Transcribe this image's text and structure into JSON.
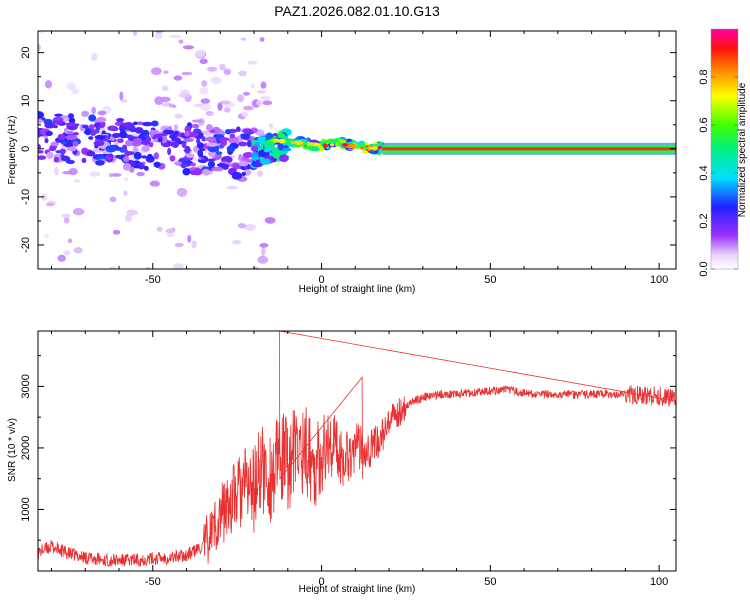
{
  "chart_data": [
    {
      "type": "heatmap",
      "title": "PAZ1.2026.082.01.10.G13",
      "xlabel": "Height of straight line (km)",
      "ylabel": "Frequency (Hz)",
      "xlim": [
        -84,
        105
      ],
      "ylim": [
        -25,
        24.5
      ],
      "xticks": [
        -50,
        0,
        50,
        100
      ],
      "yticks": [
        -20,
        -10,
        0,
        10,
        20
      ],
      "colorbar": {
        "label": "Normalized spectral amplitude",
        "range": [
          0,
          1
        ],
        "ticks": [
          "0.0",
          "0.2",
          "0.4",
          "0.6",
          "0.8"
        ],
        "tick_values": [
          0.0,
          0.2,
          0.4,
          0.6,
          0.8
        ],
        "colormap": "rainbow (white-violet-blue-cyan-green-yellow-orange-red-magenta)"
      },
      "tone_line": {
        "frequency": 0.0,
        "from_height": 18,
        "to_height": 105,
        "amplitude": 0.9
      },
      "features": [
        {
          "height_range": [
            -84,
            -20
          ],
          "frequency_range": [
            -6,
            8
          ],
          "amplitude": 0.25
        },
        {
          "height_range": [
            -20,
            -10
          ],
          "frequency_range": [
            -4,
            4
          ],
          "amplitude": 0.45
        },
        {
          "height_range": [
            -10,
            18
          ],
          "frequency_range": [
            -1,
            3
          ],
          "amplitude": 0.6
        }
      ]
    },
    {
      "type": "line",
      "xlabel": "Height of straight line (km)",
      "ylabel": "SNR (10 * v/v)",
      "xlim": [
        -84,
        105
      ],
      "ylim": [
        0,
        3900
      ],
      "xticks": [
        -50,
        0,
        50,
        100
      ],
      "yticks": [
        1000,
        2000,
        3000
      ],
      "line_color": "#e83030",
      "series": [
        {
          "name": "SNR",
          "x": [
            -84,
            -80,
            -75,
            -70,
            -65,
            -60,
            -55,
            -50,
            -45,
            -40,
            -35,
            -32,
            -30,
            -28,
            -25,
            -22,
            -20,
            -18,
            -16,
            -14,
            -12,
            -10,
            -8,
            -5,
            -2,
            0,
            3,
            6,
            9,
            12,
            15,
            18,
            21,
            24,
            27,
            30,
            35,
            40,
            45,
            50,
            55,
            60,
            65,
            70,
            75,
            80,
            85,
            90,
            95,
            100,
            105
          ],
          "y": [
            300,
            400,
            280,
            220,
            180,
            170,
            180,
            200,
            220,
            260,
            400,
            700,
            900,
            1050,
            1250,
            1400,
            1300,
            1700,
            1500,
            1600,
            1800,
            1750,
            1900,
            2000,
            1700,
            1900,
            2100,
            1850,
            1950,
            2050,
            2000,
            2200,
            2450,
            2650,
            2750,
            2820,
            2870,
            2880,
            2900,
            2930,
            2940,
            2890,
            2860,
            2880,
            2860,
            2870,
            2880,
            2870,
            2860,
            2840,
            2820
          ]
        }
      ],
      "annotations": [
        {
          "type": "spike",
          "x": -12.5,
          "y": 3900
        },
        {
          "type": "spike",
          "x": 12,
          "y": 3150
        }
      ]
    }
  ]
}
